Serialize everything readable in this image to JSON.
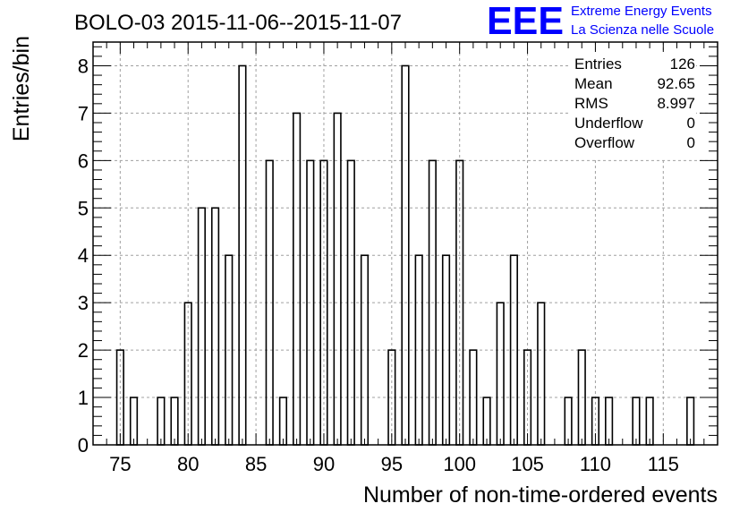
{
  "chart_data": {
    "type": "bar",
    "title": "BOLO-03 2015-11-06--2015-11-07",
    "xlabel": "Number of non-time-ordered events",
    "ylabel": "Entries/bin",
    "xlim": [
      73,
      119
    ],
    "ylim": [
      0,
      8.5
    ],
    "bin_width": 0.5,
    "grid": true,
    "x_ticks": [
      "75",
      "80",
      "85",
      "90",
      "95",
      "100",
      "105",
      "110",
      "115"
    ],
    "y_ticks": [
      "0",
      "1",
      "2",
      "3",
      "4",
      "5",
      "6",
      "7",
      "8"
    ],
    "bins": [
      {
        "x": 75,
        "y": 2
      },
      {
        "x": 76,
        "y": 1
      },
      {
        "x": 78,
        "y": 1
      },
      {
        "x": 79,
        "y": 1
      },
      {
        "x": 80,
        "y": 3
      },
      {
        "x": 81,
        "y": 5
      },
      {
        "x": 82,
        "y": 5
      },
      {
        "x": 83,
        "y": 4
      },
      {
        "x": 84,
        "y": 8
      },
      {
        "x": 86,
        "y": 6
      },
      {
        "x": 87,
        "y": 1
      },
      {
        "x": 88,
        "y": 7
      },
      {
        "x": 89,
        "y": 6
      },
      {
        "x": 90,
        "y": 6
      },
      {
        "x": 91,
        "y": 7
      },
      {
        "x": 92,
        "y": 6
      },
      {
        "x": 93,
        "y": 4
      },
      {
        "x": 95,
        "y": 2
      },
      {
        "x": 96,
        "y": 8
      },
      {
        "x": 97,
        "y": 4
      },
      {
        "x": 98,
        "y": 6
      },
      {
        "x": 99,
        "y": 4
      },
      {
        "x": 100,
        "y": 6
      },
      {
        "x": 101,
        "y": 2
      },
      {
        "x": 102,
        "y": 1
      },
      {
        "x": 103,
        "y": 3
      },
      {
        "x": 104,
        "y": 4
      },
      {
        "x": 105,
        "y": 2
      },
      {
        "x": 106,
        "y": 3
      },
      {
        "x": 108,
        "y": 1
      },
      {
        "x": 109,
        "y": 2
      },
      {
        "x": 110,
        "y": 1
      },
      {
        "x": 111,
        "y": 1
      },
      {
        "x": 113,
        "y": 1
      },
      {
        "x": 114,
        "y": 1
      },
      {
        "x": 117,
        "y": 1
      }
    ],
    "stats": [
      {
        "label": "Entries",
        "value": "126"
      },
      {
        "label": "Mean",
        "value": "92.65"
      },
      {
        "label": "RMS",
        "value": "8.997"
      },
      {
        "label": "Underflow",
        "value": "0"
      },
      {
        "label": "Overflow",
        "value": "0"
      }
    ]
  },
  "logo": {
    "text": "EEE",
    "line1": "Extreme Energy Events",
    "line2": "La Scienza nelle Scuole",
    "color": "#0000ff"
  }
}
